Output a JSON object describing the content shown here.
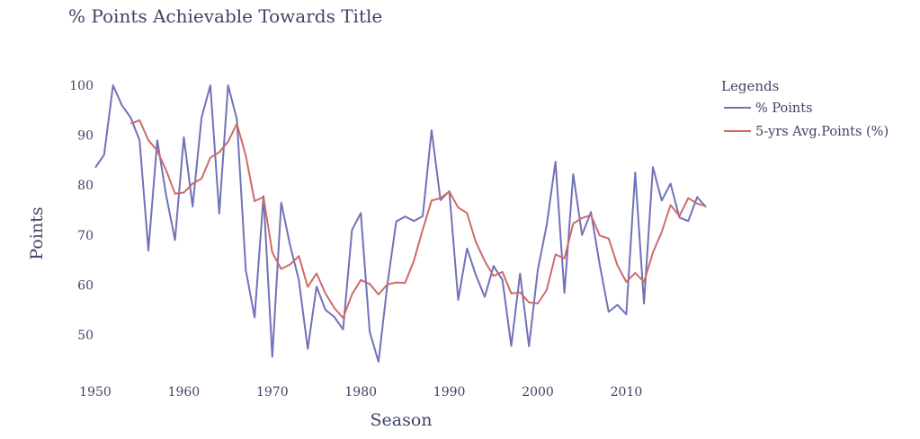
{
  "chart_data": {
    "type": "line",
    "title": "% Points Achievable Towards Title",
    "xlabel": "Season",
    "ylabel": "Points",
    "xlim": [
      1950,
      2019
    ],
    "ylim": [
      44,
      101.5
    ],
    "xticks": [
      1950,
      1960,
      1970,
      1980,
      1990,
      2000,
      2010
    ],
    "yticks": [
      50,
      60,
      70,
      80,
      90,
      100
    ],
    "grid": false,
    "legend": {
      "title": "Legends",
      "placement": "right"
    },
    "x": [
      1950,
      1951,
      1952,
      1953,
      1954,
      1955,
      1956,
      1957,
      1958,
      1959,
      1960,
      1961,
      1962,
      1963,
      1964,
      1965,
      1966,
      1967,
      1968,
      1969,
      1970,
      1971,
      1972,
      1973,
      1974,
      1975,
      1976,
      1977,
      1978,
      1979,
      1980,
      1981,
      1982,
      1983,
      1984,
      1985,
      1986,
      1987,
      1988,
      1989,
      1990,
      1991,
      1992,
      1993,
      1994,
      1995,
      1996,
      1997,
      1998,
      1999,
      2000,
      2001,
      2002,
      2003,
      2004,
      2005,
      2006,
      2007,
      2008,
      2009,
      2010,
      2011,
      2012,
      2013,
      2014,
      2015,
      2016,
      2017,
      2018,
      2019
    ],
    "series": [
      {
        "name": "% Points",
        "color": "#7072b8",
        "values": [
          83.5,
          86.1,
          100,
          96,
          93.5,
          89,
          66.9,
          89,
          78,
          69,
          89.6,
          75.7,
          93.5,
          100,
          74.3,
          100,
          93.2,
          63,
          53.5,
          77.8,
          45.6,
          76.5,
          68,
          61,
          47.2,
          59.7,
          55,
          53.6,
          51.1,
          71,
          74.4,
          50.6,
          44.6,
          60,
          72.7,
          73.7,
          72.8,
          73.8,
          91,
          77,
          78.8,
          57,
          67.3,
          62,
          57.6,
          63.8,
          61,
          47.8,
          62.3,
          47.7,
          63,
          72,
          84.7,
          58.4,
          82.2,
          70,
          74.6,
          64,
          54.6,
          56,
          54.1,
          82.5,
          56.3,
          83.6,
          76.9,
          80.3,
          73.5,
          72.8,
          77.6,
          75.6
        ]
      },
      {
        "name": "5-yrs Avg.Points (%)",
        "color": "#d06a6a",
        "values": [
          null,
          null,
          null,
          null,
          92.3,
          93,
          89,
          86.9,
          83,
          78.3,
          78.5,
          80.3,
          81.3,
          85.5,
          86.6,
          88.7,
          92.3,
          85.9,
          76.8,
          77.6,
          66.5,
          63.2,
          64.1,
          65.8,
          59.6,
          62.3,
          58.3,
          55.4,
          53.4,
          58.1,
          61,
          60.2,
          58.1,
          60.1,
          60.5,
          60.4,
          64.9,
          71.1,
          76.9,
          77.4,
          78.7,
          75.5,
          74.4,
          68.6,
          64.8,
          61.8,
          62.6,
          58.3,
          58.5,
          56.5,
          56.3,
          59,
          66.1,
          65.3,
          72.3,
          73.4,
          74,
          69.9,
          69.3,
          63.9,
          60.6,
          62.4,
          60.6,
          66.5,
          70.6,
          76,
          73.8,
          77.4,
          76.3,
          75.8
        ]
      }
    ]
  }
}
